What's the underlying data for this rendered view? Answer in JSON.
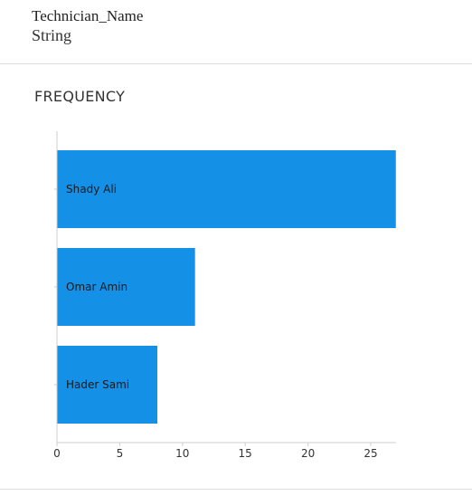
{
  "field": {
    "name": "Technician_Name",
    "type": "String"
  },
  "section": {
    "title": "FREQUENCY"
  },
  "colors": {
    "bar": "#1490e6",
    "axis": "#cccccc",
    "tick_label": "#333333",
    "bar_label": "#1a1a1a"
  },
  "chart_data": {
    "type": "bar",
    "orientation": "horizontal",
    "categories": [
      "Shady Ali",
      "Omar Amin",
      "Hader Sami"
    ],
    "values": [
      27,
      11,
      8
    ],
    "xlim": [
      0,
      27
    ],
    "xticks": [
      0,
      5,
      10,
      15,
      20,
      25
    ],
    "grid": false,
    "legend": "none"
  }
}
